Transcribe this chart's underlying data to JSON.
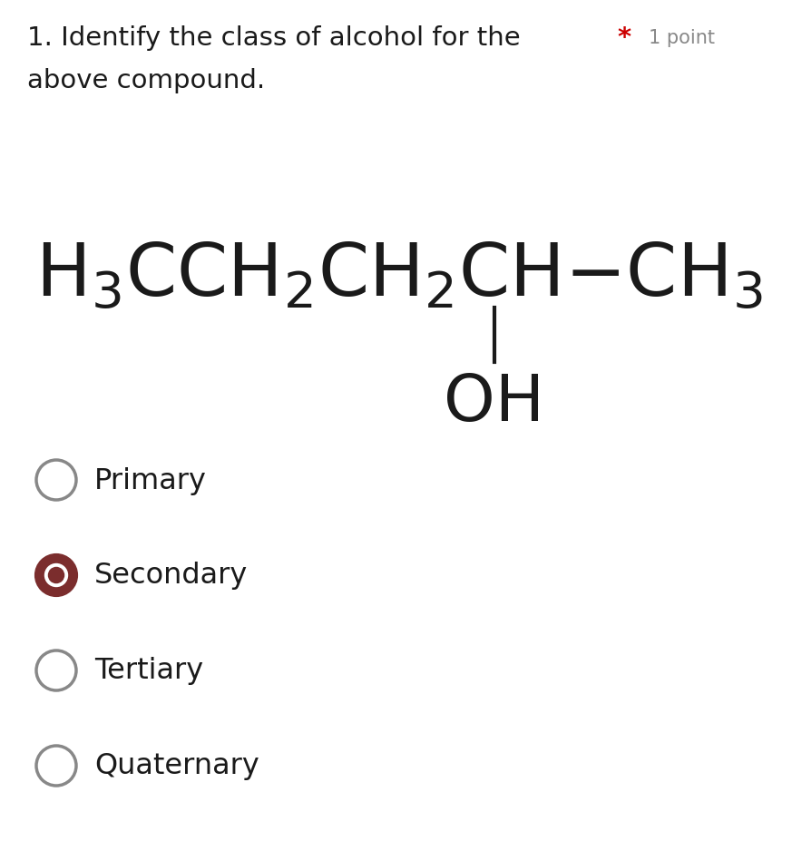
{
  "background_color": "#ffffff",
  "title_text": "1. Identify the class of alcohol for the",
  "title_star": "*",
  "title_points": "1 point",
  "title_line2": "above compound.",
  "title_fontsize": 21,
  "star_fontsize": 21,
  "points_fontsize": 15,
  "compound_fontsize": 58,
  "oh_fontsize": 52,
  "options_fontsize": 23,
  "options": [
    "Primary",
    "Secondary",
    "Tertiary",
    "Quaternary"
  ],
  "text_color": "#1a1a1a",
  "star_color": "#cc0000",
  "points_color": "#888888",
  "selected_index": 1,
  "selected_fill": "#7B2D2D",
  "circle_edge_color": "#888888",
  "circle_edge_width": 2.5
}
